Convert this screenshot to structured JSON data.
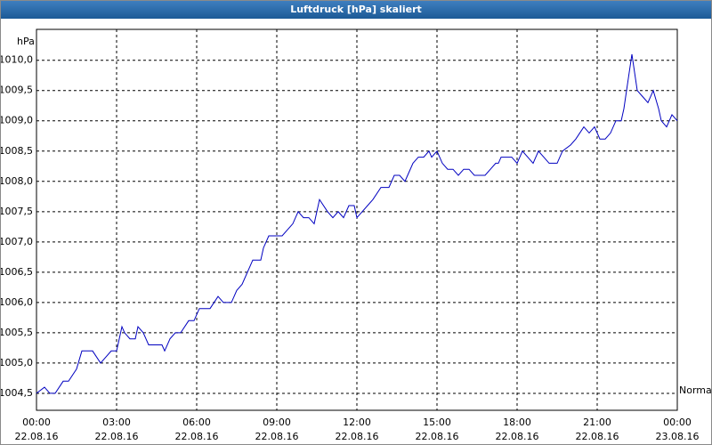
{
  "chart_data": {
    "type": "line",
    "title": "Luftdruck [hPa] skaliert",
    "y_unit": "hPa",
    "x": [
      0,
      0.3,
      0.5,
      0.7,
      1.0,
      1.2,
      1.5,
      1.7,
      2.1,
      2.4,
      2.8,
      3.0,
      3.2,
      3.3,
      3.5,
      3.7,
      3.8,
      4.0,
      4.2,
      4.5,
      4.7,
      4.8,
      5.0,
      5.2,
      5.4,
      5.7,
      5.9,
      6.1,
      6.5,
      6.8,
      7.0,
      7.3,
      7.5,
      7.7,
      8.0,
      8.1,
      8.4,
      8.5,
      8.7,
      9.0,
      9.2,
      9.4,
      9.6,
      9.8,
      10.0,
      10.2,
      10.4,
      10.6,
      10.9,
      11.1,
      11.3,
      11.5,
      11.7,
      11.9,
      12.0,
      12.2,
      12.4,
      12.6,
      12.9,
      13.2,
      13.4,
      13.6,
      13.8,
      13.9,
      14.1,
      14.3,
      14.5,
      14.7,
      14.8,
      15.0,
      15.2,
      15.4,
      15.6,
      15.8,
      16.0,
      16.2,
      16.4,
      16.8,
      17.0,
      17.2,
      17.3,
      17.4,
      17.8,
      18.0,
      18.2,
      18.4,
      18.6,
      18.8,
      19.0,
      19.2,
      19.5,
      19.7,
      20.0,
      20.2,
      20.5,
      20.7,
      20.9,
      21.1,
      21.3,
      21.5,
      21.7,
      21.9,
      22.0,
      22.1,
      22.3,
      22.5,
      22.7,
      22.9,
      23.1,
      23.3,
      23.4,
      23.6,
      23.8,
      24.0
    ],
    "series": [
      {
        "name": "Normal",
        "color": "#0000c0",
        "values": [
          1004.5,
          1004.6,
          1004.5,
          1004.5,
          1004.7,
          1004.7,
          1004.9,
          1005.2,
          1005.2,
          1005.0,
          1005.2,
          1005.2,
          1005.6,
          1005.5,
          1005.4,
          1005.4,
          1005.6,
          1005.5,
          1005.3,
          1005.3,
          1005.3,
          1005.2,
          1005.4,
          1005.5,
          1005.5,
          1005.7,
          1005.7,
          1005.9,
          1005.9,
          1006.1,
          1006.0,
          1006.0,
          1006.2,
          1006.3,
          1006.6,
          1006.7,
          1006.7,
          1006.9,
          1007.1,
          1007.1,
          1007.1,
          1007.2,
          1007.3,
          1007.5,
          1007.4,
          1007.4,
          1007.3,
          1007.7,
          1007.5,
          1007.4,
          1007.5,
          1007.4,
          1007.6,
          1007.6,
          1007.4,
          1007.5,
          1007.6,
          1007.7,
          1007.9,
          1007.9,
          1008.1,
          1008.1,
          1008.0,
          1008.1,
          1008.3,
          1008.4,
          1008.4,
          1008.5,
          1008.4,
          1008.5,
          1008.3,
          1008.2,
          1008.2,
          1008.1,
          1008.2,
          1008.2,
          1008.1,
          1008.1,
          1008.2,
          1008.3,
          1008.3,
          1008.4,
          1008.4,
          1008.3,
          1008.5,
          1008.4,
          1008.3,
          1008.5,
          1008.4,
          1008.3,
          1008.3,
          1008.5,
          1008.6,
          1008.7,
          1008.9,
          1008.8,
          1008.9,
          1008.7,
          1008.7,
          1008.8,
          1009.0,
          1009.0,
          1009.2,
          1009.5,
          1010.1,
          1009.5,
          1009.4,
          1009.3,
          1009.5,
          1009.2,
          1009.0,
          1008.9,
          1009.1,
          1009.0
        ]
      }
    ],
    "xlim": [
      0,
      24
    ],
    "xticks": [
      {
        "value": 0,
        "label": [
          "00:00",
          "22.08.16"
        ]
      },
      {
        "value": 3,
        "label": [
          "03:00",
          "22.08.16"
        ]
      },
      {
        "value": 6,
        "label": [
          "06:00",
          "22.08.16"
        ]
      },
      {
        "value": 9,
        "label": [
          "09:00",
          "22.08.16"
        ]
      },
      {
        "value": 12,
        "label": [
          "12:00",
          "22.08.16"
        ]
      },
      {
        "value": 15,
        "label": [
          "15:00",
          "22.08.16"
        ]
      },
      {
        "value": 18,
        "label": [
          "18:00",
          "22.08.16"
        ]
      },
      {
        "value": 21,
        "label": [
          "21:00",
          "22.08.16"
        ]
      },
      {
        "value": 24,
        "label": [
          "00:00",
          "23.08.16"
        ]
      }
    ],
    "ylim": [
      1004.22,
      1010.51
    ],
    "yticks": [
      {
        "value": 1004.5,
        "label": "1004,5"
      },
      {
        "value": 1005.0,
        "label": "1005,0"
      },
      {
        "value": 1005.5,
        "label": "1005,5"
      },
      {
        "value": 1006.0,
        "label": "1006,0"
      },
      {
        "value": 1006.5,
        "label": "1006,5"
      },
      {
        "value": 1007.0,
        "label": "1007,0"
      },
      {
        "value": 1007.5,
        "label": "1007,5"
      },
      {
        "value": 1008.0,
        "label": "1008,0"
      },
      {
        "value": 1008.5,
        "label": "1008,5"
      },
      {
        "value": 1009.0,
        "label": "1009,0"
      },
      {
        "value": 1009.5,
        "label": "1009,5"
      },
      {
        "value": 1010.0,
        "label": "1010,0"
      }
    ],
    "grid": true
  }
}
